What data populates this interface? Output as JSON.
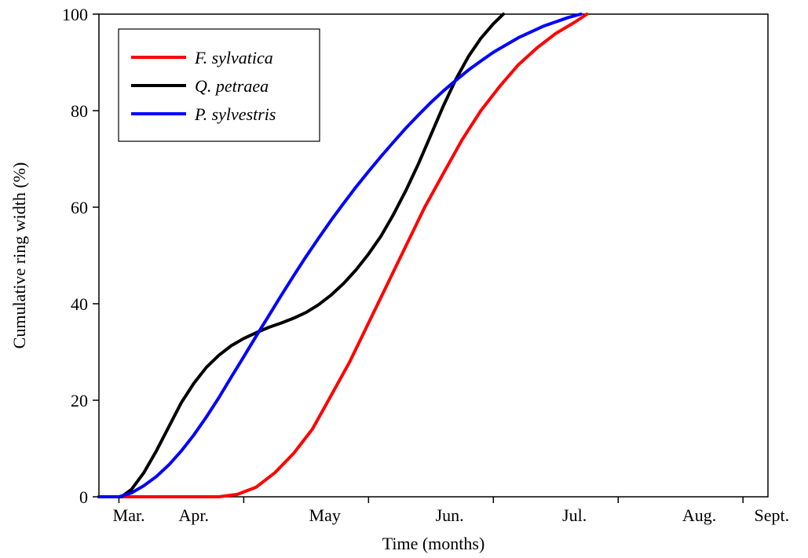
{
  "chart_data": {
    "type": "line",
    "title": "",
    "xlabel": "Time (months)",
    "ylabel": "Cumulative ring width (%)",
    "x_unit": "months (1 = start of March)",
    "xlim": [
      0.84,
      6.2
    ],
    "ylim": [
      0,
      100
    ],
    "x_ticks": [
      1,
      2,
      3,
      4,
      5,
      6
    ],
    "x_tick_labels": [
      {
        "label": "Mar.",
        "pos": 1.08
      },
      {
        "label": "Apr.",
        "pos": 1.6
      },
      {
        "label": "May",
        "pos": 2.65
      },
      {
        "label": "Jun.",
        "pos": 3.65
      },
      {
        "label": "Jul.",
        "pos": 4.65
      },
      {
        "label": "Aug.",
        "pos": 5.65
      },
      {
        "label": "Sept.",
        "pos": 6.23
      }
    ],
    "y_ticks": [
      0,
      20,
      40,
      60,
      80,
      100
    ],
    "grid": false,
    "legend_position": "top-left",
    "series": [
      {
        "name": "F. sylvatica",
        "color": "#ff0000",
        "points": [
          [
            0.84,
            0
          ],
          [
            1.0,
            0
          ],
          [
            1.5,
            0
          ],
          [
            1.8,
            0
          ],
          [
            1.95,
            0.5
          ],
          [
            2.1,
            2
          ],
          [
            2.25,
            5
          ],
          [
            2.4,
            9
          ],
          [
            2.55,
            14
          ],
          [
            2.7,
            21
          ],
          [
            2.85,
            28
          ],
          [
            3.0,
            36
          ],
          [
            3.15,
            44
          ],
          [
            3.3,
            52
          ],
          [
            3.45,
            60
          ],
          [
            3.6,
            67
          ],
          [
            3.75,
            74
          ],
          [
            3.9,
            80
          ],
          [
            4.05,
            85
          ],
          [
            4.2,
            89.5
          ],
          [
            4.35,
            93
          ],
          [
            4.5,
            96
          ],
          [
            4.65,
            98.3
          ],
          [
            4.75,
            100
          ]
        ]
      },
      {
        "name": "Q. petraea",
        "color": "#000000",
        "points": [
          [
            0.84,
            0
          ],
          [
            1.02,
            0
          ],
          [
            1.1,
            1.5
          ],
          [
            1.2,
            5
          ],
          [
            1.3,
            9.5
          ],
          [
            1.4,
            14.5
          ],
          [
            1.5,
            19.5
          ],
          [
            1.6,
            23.5
          ],
          [
            1.7,
            26.8
          ],
          [
            1.8,
            29.3
          ],
          [
            1.9,
            31.3
          ],
          [
            2.0,
            32.8
          ],
          [
            2.1,
            34
          ],
          [
            2.2,
            35.1
          ],
          [
            2.3,
            36
          ],
          [
            2.4,
            37
          ],
          [
            2.5,
            38.2
          ],
          [
            2.6,
            39.8
          ],
          [
            2.7,
            41.8
          ],
          [
            2.8,
            44.2
          ],
          [
            2.9,
            47
          ],
          [
            3.0,
            50.3
          ],
          [
            3.1,
            54
          ],
          [
            3.2,
            58.5
          ],
          [
            3.3,
            63.5
          ],
          [
            3.4,
            69
          ],
          [
            3.5,
            75
          ],
          [
            3.6,
            81
          ],
          [
            3.7,
            86.5
          ],
          [
            3.8,
            91.2
          ],
          [
            3.9,
            95
          ],
          [
            4.0,
            98
          ],
          [
            4.06,
            99.5
          ],
          [
            4.08,
            100
          ]
        ]
      },
      {
        "name": "P. sylvestris",
        "color": "#0000ff",
        "points": [
          [
            0.84,
            0
          ],
          [
            1.0,
            0
          ],
          [
            1.1,
            0.8
          ],
          [
            1.2,
            2.3
          ],
          [
            1.3,
            4.2
          ],
          [
            1.4,
            6.6
          ],
          [
            1.5,
            9.5
          ],
          [
            1.6,
            12.8
          ],
          [
            1.7,
            16.5
          ],
          [
            1.8,
            20.5
          ],
          [
            1.9,
            24.8
          ],
          [
            2.0,
            29
          ],
          [
            2.1,
            33.3
          ],
          [
            2.2,
            37.5
          ],
          [
            2.3,
            41.7
          ],
          [
            2.4,
            45.8
          ],
          [
            2.5,
            49.8
          ],
          [
            2.6,
            53.6
          ],
          [
            2.7,
            57.3
          ],
          [
            2.8,
            60.8
          ],
          [
            2.9,
            64.2
          ],
          [
            3.0,
            67.4
          ],
          [
            3.1,
            70.5
          ],
          [
            3.2,
            73.5
          ],
          [
            3.3,
            76.4
          ],
          [
            3.4,
            79.1
          ],
          [
            3.5,
            81.7
          ],
          [
            3.6,
            84.1
          ],
          [
            3.7,
            86.3
          ],
          [
            3.8,
            88.4
          ],
          [
            3.9,
            90.3
          ],
          [
            4.0,
            92.1
          ],
          [
            4.2,
            95.1
          ],
          [
            4.4,
            97.5
          ],
          [
            4.6,
            99.3
          ],
          [
            4.7,
            100
          ]
        ]
      }
    ]
  }
}
